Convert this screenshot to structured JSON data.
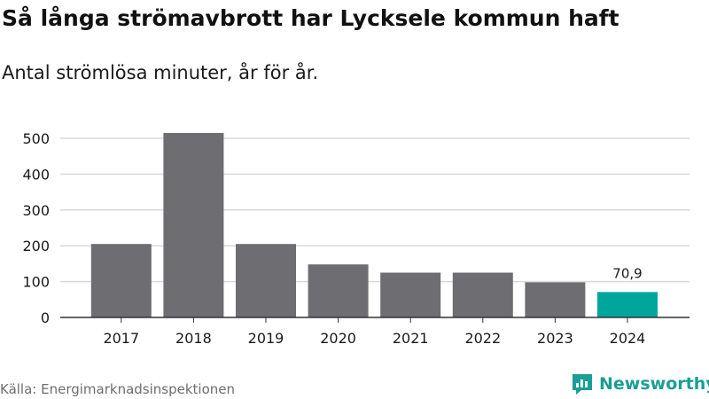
{
  "title": "Så långa strömavbrott har Lycksele kommun haft",
  "subtitle": "Antal strömlösa minuter, år för år.",
  "source": "Källa: Energimarknadsinspektionen",
  "brand": "Newsworthy",
  "colors": {
    "bar": "#6e6d72",
    "highlight": "#00a69c",
    "grid": "#d9d9d9",
    "axis": "#333333",
    "brand": "#1a9e95"
  },
  "chart_data": {
    "type": "bar",
    "categories": [
      "2017",
      "2018",
      "2019",
      "2020",
      "2021",
      "2022",
      "2023",
      "2024"
    ],
    "values": [
      205,
      515,
      205,
      148,
      125,
      125,
      98,
      70.9
    ],
    "highlight_index": 7,
    "data_labels": [
      null,
      null,
      null,
      null,
      null,
      null,
      null,
      "70,9"
    ],
    "yticks": [
      0,
      100,
      200,
      300,
      400,
      500
    ],
    "ylim": [
      0,
      500
    ],
    "grid": true
  }
}
